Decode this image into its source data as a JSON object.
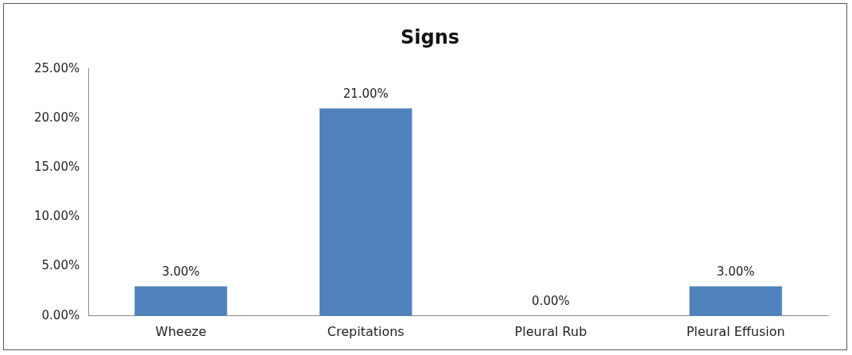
{
  "chart_data": {
    "type": "bar",
    "title": "Signs",
    "categories": [
      "Wheeze",
      "Crepitations",
      "Pleural Rub",
      "Pleural Effusion"
    ],
    "values": [
      3,
      21,
      0,
      3
    ],
    "color": "#4f81bd",
    "value_labels": [
      "3.00%",
      "21.00%",
      "0.00%",
      "3.00%"
    ],
    "ylim": [
      0,
      25
    ],
    "yticks": [
      {
        "value": 0,
        "label": "0.00%"
      },
      {
        "value": 5,
        "label": "5.00%"
      },
      {
        "value": 10,
        "label": "10.00%"
      },
      {
        "value": 15,
        "label": "15.00%"
      },
      {
        "value": 20,
        "label": "20.00%"
      },
      {
        "value": 25,
        "label": "25.00%"
      }
    ],
    "grid": false,
    "legend": false
  }
}
